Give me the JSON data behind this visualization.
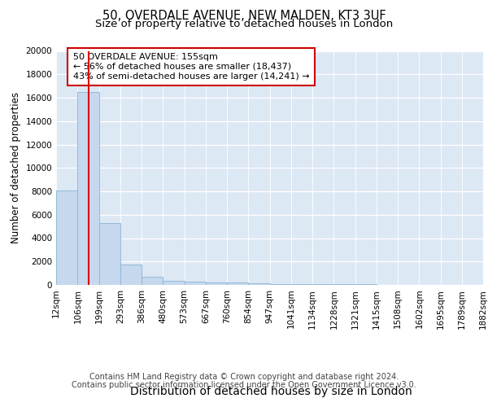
{
  "title_line1": "50, OVERDALE AVENUE, NEW MALDEN, KT3 3UF",
  "title_line2": "Size of property relative to detached houses in London",
  "xlabel": "Distribution of detached houses by size in London",
  "ylabel": "Number of detached properties",
  "annotation_title": "50 OVERDALE AVENUE: 155sqm",
  "annotation_line2": "← 56% of detached houses are smaller (18,437)",
  "annotation_line3": "43% of semi-detached houses are larger (14,241) →",
  "property_value": 155,
  "bar_left_edges": [
    12,
    106,
    199,
    293,
    386,
    480,
    573,
    667,
    760,
    854,
    947,
    1041,
    1134,
    1228,
    1321,
    1415,
    1508,
    1602,
    1695,
    1789
  ],
  "bar_widths": [
    94,
    93,
    94,
    93,
    94,
    93,
    94,
    93,
    94,
    93,
    94,
    93,
    94,
    93,
    94,
    93,
    94,
    93,
    94,
    93
  ],
  "bar_heights": [
    8100,
    16500,
    5300,
    1750,
    700,
    320,
    250,
    220,
    175,
    150,
    90,
    70,
    55,
    45,
    35,
    28,
    22,
    18,
    14,
    10
  ],
  "bar_color": "#c5d8ee",
  "bar_edge_color": "#8ab4d4",
  "vline_x": 155,
  "vline_color": "#dd0000",
  "plot_bg_color": "#dde8f5",
  "ylim": [
    0,
    20000
  ],
  "yticks": [
    0,
    2000,
    4000,
    6000,
    8000,
    10000,
    12000,
    14000,
    16000,
    18000,
    20000
  ],
  "xtick_labels": [
    "12sqm",
    "106sqm",
    "199sqm",
    "293sqm",
    "386sqm",
    "480sqm",
    "573sqm",
    "667sqm",
    "760sqm",
    "854sqm",
    "947sqm",
    "1041sqm",
    "1134sqm",
    "1228sqm",
    "1321sqm",
    "1415sqm",
    "1508sqm",
    "1602sqm",
    "1695sqm",
    "1789sqm",
    "1882sqm"
  ],
  "footer_line1": "Contains HM Land Registry data © Crown copyright and database right 2024.",
  "footer_line2": "Contains public sector information licensed under the Open Government Licence v3.0.",
  "annotation_box_color": "#ffffff",
  "annotation_box_edge": "#cc0000",
  "title_fontsize": 10.5,
  "subtitle_fontsize": 9.5,
  "ylabel_fontsize": 8.5,
  "xlabel_fontsize": 10,
  "tick_fontsize": 7.5,
  "annotation_fontsize": 8,
  "footer_fontsize": 7
}
